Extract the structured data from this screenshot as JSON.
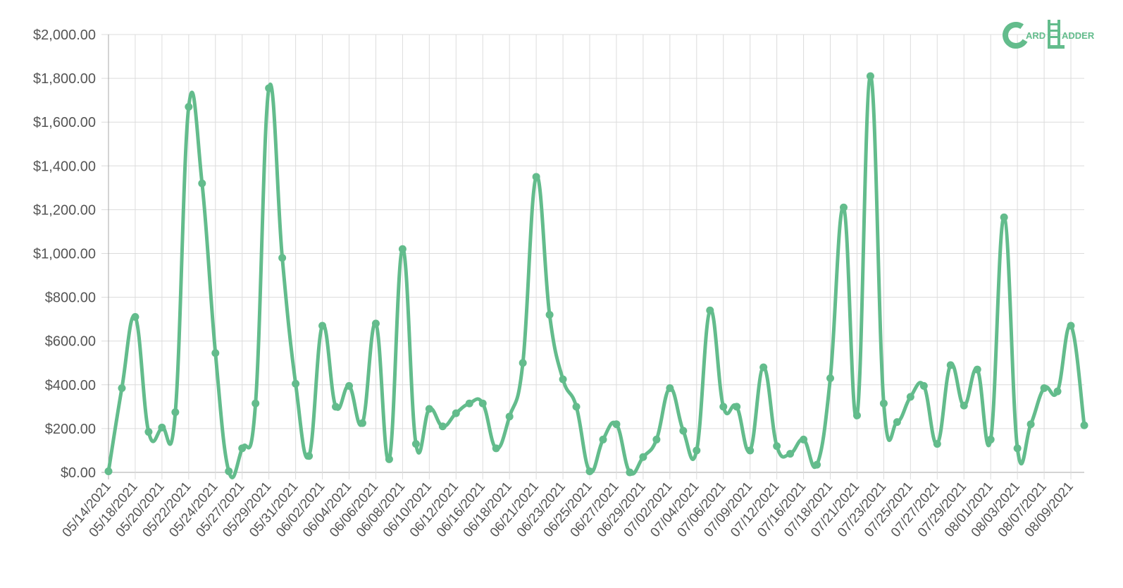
{
  "logo": {
    "letter_c": "C",
    "text_a": "ARD",
    "letter_l": "L",
    "text_b": "ADDER"
  },
  "colors": {
    "line": "#63BC8C",
    "point": "#63BC8C",
    "grid": "#dcdcdc",
    "axis": "#a8a8a8",
    "label": "#555555",
    "logo": "#63BC8C"
  },
  "chart_data": {
    "type": "line",
    "title": "",
    "xlabel": "",
    "ylabel": "",
    "ylim": [
      0,
      2000
    ],
    "y_ticks": [
      "$2,000.00",
      "$1,800.00",
      "$1,600.00",
      "$1,400.00",
      "$1,200.00",
      "$1,000.00",
      "$800.00",
      "$600.00",
      "$400.00",
      "$200.00",
      "$0.00"
    ],
    "grid": true,
    "legend": "none",
    "x_tick_labels": [
      "05/14/2021",
      "05/18/2021",
      "05/20/2021",
      "05/22/2021",
      "05/24/2021",
      "05/27/2021",
      "05/29/2021",
      "05/31/2021",
      "06/02/2021",
      "06/04/2021",
      "06/06/2021",
      "06/08/2021",
      "06/10/2021",
      "06/12/2021",
      "06/16/2021",
      "06/18/2021",
      "06/21/2021",
      "06/23/2021",
      "06/25/2021",
      "06/27/2021",
      "06/29/2021",
      "07/02/2021",
      "07/04/2021",
      "07/06/2021",
      "07/09/2021",
      "07/12/2021",
      "07/16/2021",
      "07/18/2021",
      "07/21/2021",
      "07/23/2021",
      "07/25/2021",
      "07/27/2021",
      "07/29/2021",
      "08/01/2021",
      "08/03/2021",
      "08/07/2021",
      "08/09/2021"
    ],
    "series": [
      {
        "values": [
          5,
          385,
          710,
          185,
          205,
          275,
          1670,
          1320,
          545,
          5,
          110,
          315,
          1755,
          980,
          405,
          75,
          670,
          300,
          395,
          225,
          680,
          60,
          1020,
          130,
          290,
          210,
          270,
          315,
          315,
          110,
          255,
          500,
          1350,
          720,
          425,
          300,
          5,
          150,
          220,
          0,
          70,
          150,
          385,
          190,
          100,
          740,
          300,
          300,
          100,
          480,
          120,
          85,
          150,
          35,
          430,
          1210,
          260,
          1810,
          315,
          230,
          345,
          395,
          130,
          490,
          305,
          470,
          150,
          1165,
          110,
          220,
          385,
          370,
          670,
          215
        ]
      }
    ]
  }
}
